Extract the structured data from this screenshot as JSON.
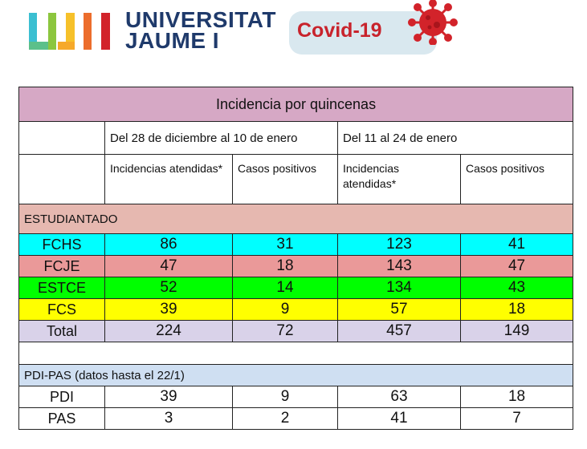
{
  "header": {
    "university_name_line1": "UNIVERSITAT",
    "university_name_line2": "JAUME I",
    "badge_text": "Covid-19",
    "colors": {
      "uji_cyan": "#3bbfd1",
      "uji_green": "#8cc63e",
      "uji_yellow": "#f6c12a",
      "uji_orange": "#ec6d2c",
      "uji_red": "#d2232a",
      "navy": "#1f3a6b",
      "covid_red": "#c8232c"
    }
  },
  "table": {
    "title": "Incidencia por quincenas",
    "periods": [
      "Del 28 de diciembre al 10 de enero",
      "Del 11 al 24 de enero"
    ],
    "subheaders": [
      "Incidencias atendidas*",
      "Casos positivos",
      "Incidencias atendidas*",
      "Casos positivos"
    ],
    "section_students": "ESTUDIANTADO",
    "students": [
      {
        "label": "FCHS",
        "values": [
          "86",
          "31",
          "123",
          "41"
        ],
        "color": "#00ffff"
      },
      {
        "label": "FCJE",
        "values": [
          "47",
          "18",
          "143",
          "47"
        ],
        "color": "#ea9999"
      },
      {
        "label": "ESTCE",
        "values": [
          "52",
          "14",
          "134",
          "43"
        ],
        "color": "#00ff00"
      },
      {
        "label": "FCS",
        "values": [
          "39",
          "9",
          "57",
          "18"
        ],
        "color": "#ffff00"
      },
      {
        "label": "Total",
        "values": [
          "224",
          "72",
          "457",
          "149"
        ],
        "color": "#d9d2e9"
      }
    ],
    "section_staff": "PDI-PAS  (datos hasta el 22/1)",
    "staff": [
      {
        "label": "PDI",
        "values": [
          "39",
          "9",
          "63",
          "18"
        ]
      },
      {
        "label": "PAS",
        "values": [
          "3",
          "2",
          "41",
          "7"
        ]
      }
    ]
  }
}
